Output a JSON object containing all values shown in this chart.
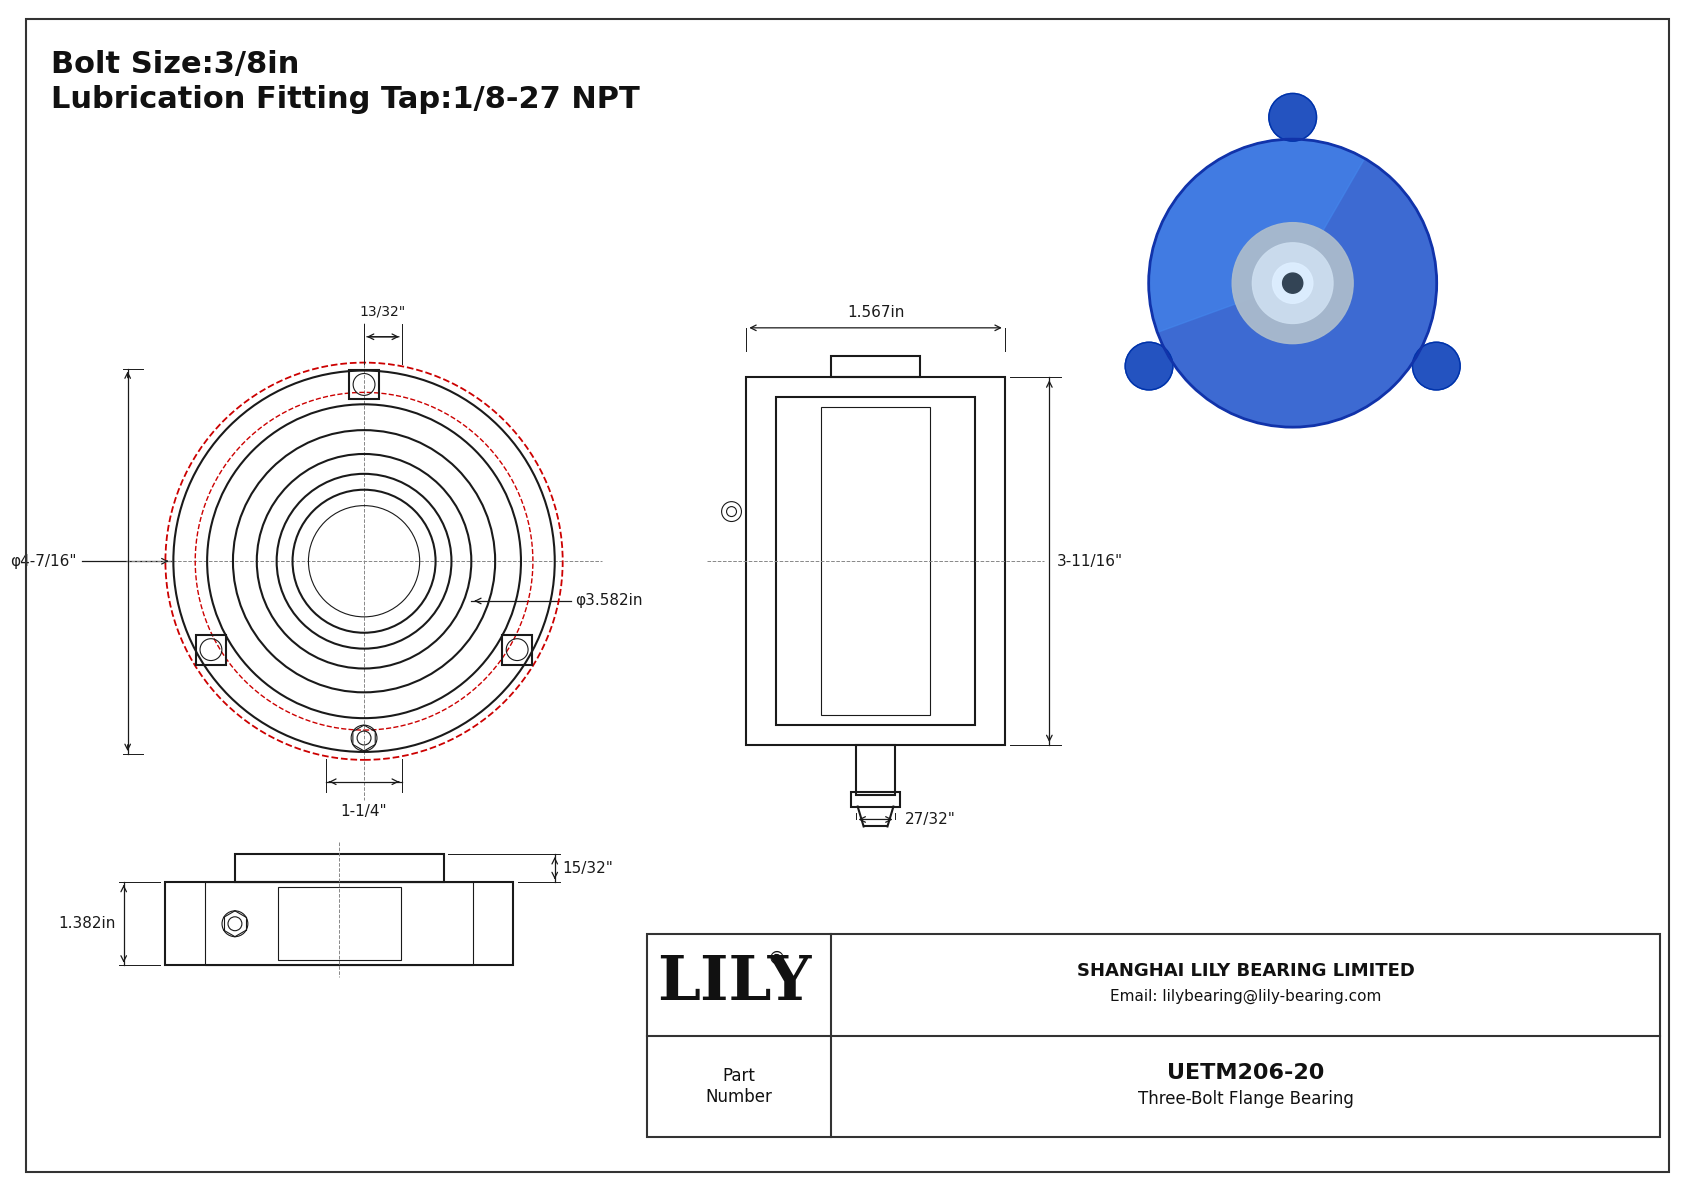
{
  "bg_color": "#ffffff",
  "border_color": "#000000",
  "line_color": "#1a1a1a",
  "dim_color": "#1a1a1a",
  "red_circle_color": "#cc0000",
  "title_line1": "Bolt Size:3/8in",
  "title_line2": "Lubrication Fitting Tap:1/8-27 NPT",
  "dim_13_32": "13/32\"",
  "dim_4_7_16": "φ4-7/16\"",
  "dim_3_582": "φ3.582in",
  "dim_1_1_4": "1-1/4\"",
  "dim_1_567": "1.567in",
  "dim_3_11_16": "3-11/16\"",
  "dim_27_32": "27/32\"",
  "dim_1_382": "1.382in",
  "dim_15_32": "15/32\"",
  "company": "SHANGHAI LILY BEARING LIMITED",
  "email": "Email: lilybearing@lily-bearing.com",
  "part_label": "Part\nNumber",
  "part_number": "UETM206-20",
  "part_desc": "Three-Bolt Flange Bearing",
  "logo": "LILY",
  "logo_reg": "®"
}
